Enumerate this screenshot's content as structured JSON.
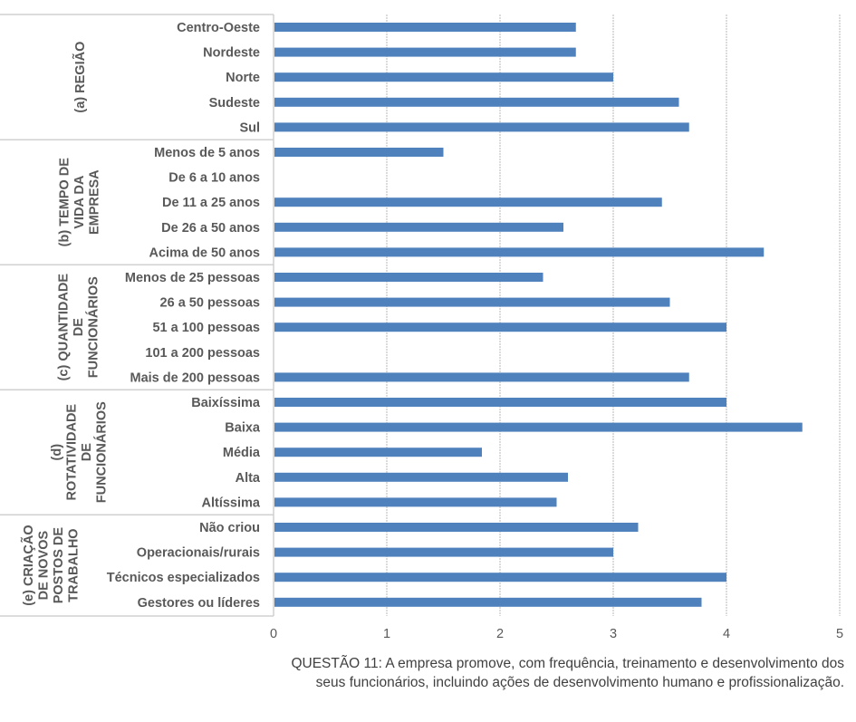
{
  "chart_data": {
    "type": "bar",
    "orientation": "horizontal",
    "title": "",
    "xlabel": "",
    "ylabel": "",
    "xlim": [
      0,
      5
    ],
    "x_ticks": [
      "0",
      "1",
      "2",
      "3",
      "4",
      "5"
    ],
    "grid": "vertical-dashed",
    "bar_color": "#4F81BD",
    "groups": [
      {
        "label_lines": [
          "(a) REGIÃO"
        ],
        "categories": [
          {
            "label": "Centro-Oeste",
            "value": 2.67
          },
          {
            "label": "Nordeste",
            "value": 2.67
          },
          {
            "label": "Norte",
            "value": 3.0
          },
          {
            "label": "Sudeste",
            "value": 3.58
          },
          {
            "label": "Sul",
            "value": 3.67
          }
        ]
      },
      {
        "label_lines": [
          "(b) TEMPO DE",
          "VIDA DA",
          "EMPRESA"
        ],
        "categories": [
          {
            "label": "Menos de 5 anos",
            "value": 1.5
          },
          {
            "label": "De 6 a 10 anos",
            "value": null
          },
          {
            "label": "De 11 a 25 anos",
            "value": 3.43
          },
          {
            "label": "De 26 a 50 anos",
            "value": 2.56
          },
          {
            "label": "Acima de 50 anos",
            "value": 4.33
          }
        ]
      },
      {
        "label_lines": [
          "(c) QUANTIDADE",
          "DE",
          "FUNCIONÁRIOS"
        ],
        "categories": [
          {
            "label": "Menos de 25 pessoas",
            "value": 2.38
          },
          {
            "label": "26 a 50 pessoas",
            "value": 3.5
          },
          {
            "label": "51 a 100 pessoas",
            "value": 4.0
          },
          {
            "label": "101 a 200 pessoas",
            "value": null
          },
          {
            "label": "Mais de 200 pessoas",
            "value": 3.67
          }
        ]
      },
      {
        "label_lines": [
          "(d)",
          "ROTATIVIDADE",
          "DE",
          "FUNCIONÁRIOS"
        ],
        "categories": [
          {
            "label": "Baixíssima",
            "value": 4.0
          },
          {
            "label": "Baixa",
            "value": 4.67
          },
          {
            "label": "Média",
            "value": 1.84
          },
          {
            "label": "Alta",
            "value": 2.6
          },
          {
            "label": "Altíssima",
            "value": 2.5
          }
        ]
      },
      {
        "label_lines": [
          "(e) CRIAÇÃO",
          "DE NOVOS",
          "POSTOS DE",
          "TRABALHO"
        ],
        "categories": [
          {
            "label": "Não criou",
            "value": 3.22
          },
          {
            "label": "Operacionais/rurais",
            "value": 3.0
          },
          {
            "label": "Técnicos especializados",
            "value": 4.0
          },
          {
            "label": "Gestores ou líderes",
            "value": 3.78
          }
        ]
      }
    ]
  },
  "caption": {
    "line1": "QUESTÃO 11: A empresa promove, com frequência, treinamento e desenvolvimento dos",
    "line2": "seus funcionários, incluindo ações de desenvolvimento humano e profissionalização."
  }
}
